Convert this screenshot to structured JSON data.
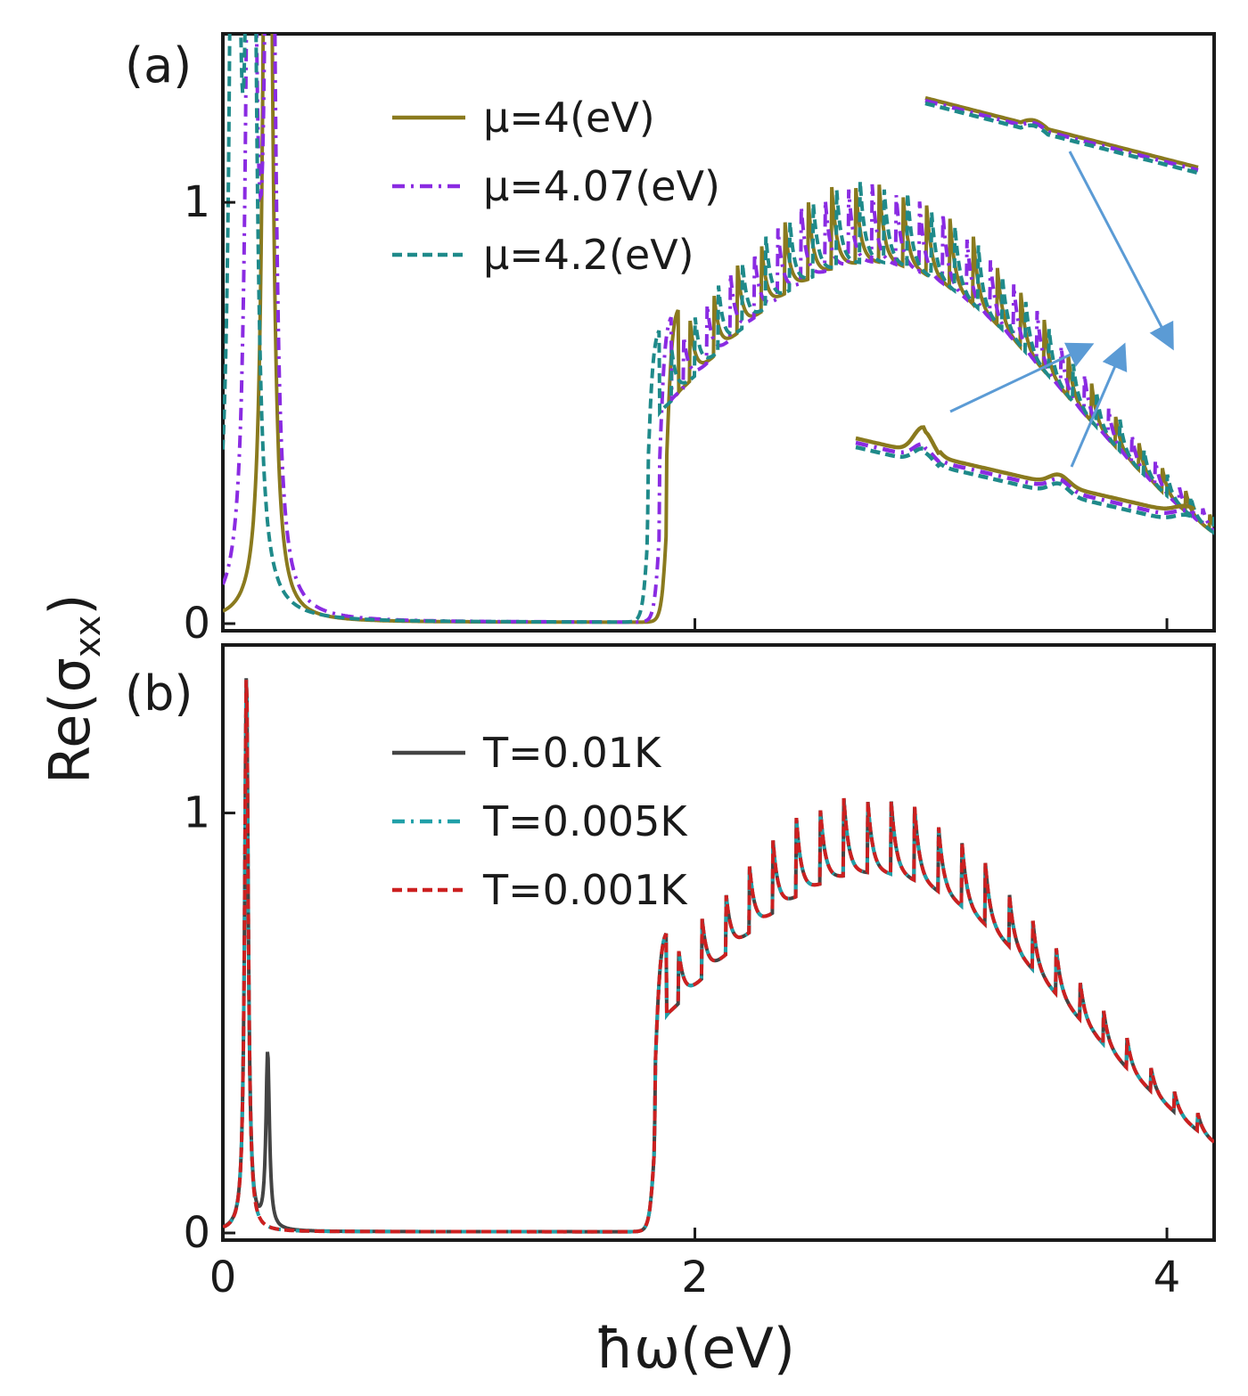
{
  "chart_data": [
    {
      "panel_label": "(a)",
      "type": "line",
      "xlim": [
        0,
        4.2
      ],
      "ylim": [
        0,
        1.4
      ],
      "xticks": [
        {
          "value": 0,
          "label": "0"
        },
        {
          "value": 2,
          "label": "2"
        },
        {
          "value": 4,
          "label": "4"
        }
      ],
      "yticks": [
        {
          "value": 0,
          "label": "0"
        },
        {
          "value": 1,
          "label": "1"
        }
      ],
      "legend_position": "top-center",
      "series": [
        {
          "name": "μ=4(eV)",
          "color": "#8a7a1e",
          "style": "solid",
          "params": {
            "interband_onset": 1.88,
            "intraband_peaks": [
              0.19
            ],
            "shift": 0.0
          }
        },
        {
          "name": "μ=4.07(eV)",
          "color": "#8a2be2",
          "style": "dashdot",
          "params": {
            "interband_onset": 1.85,
            "intraband_peaks": [
              0.12,
              0.2
            ],
            "shift": 0.0
          }
        },
        {
          "name": "μ=4.2(eV)",
          "color": "#1f8a8a",
          "style": "dashed",
          "params": {
            "interband_onset": 1.8,
            "intraband_peaks": [
              0.05,
              0.12
            ],
            "shift": 0.0
          }
        }
      ],
      "annotations": "zoomed insets of the tail oscillations with arrows"
    },
    {
      "panel_label": "(b)",
      "type": "line",
      "xlim": [
        0,
        4.2
      ],
      "ylim": [
        0,
        1.4
      ],
      "xticks": [
        {
          "value": 0,
          "label": "0"
        },
        {
          "value": 2,
          "label": "2"
        },
        {
          "value": 4,
          "label": "4"
        }
      ],
      "yticks": [
        {
          "value": 0,
          "label": "0"
        },
        {
          "value": 1,
          "label": "1"
        }
      ],
      "legend_position": "top-center",
      "series": [
        {
          "name": "T=0.01K",
          "color": "#444444",
          "style": "solid",
          "params": {
            "interband_onset": 1.83,
            "intraband_peaks": [
              0.1,
              0.19
            ]
          }
        },
        {
          "name": "T=0.005K",
          "color": "#20a0a8",
          "style": "dashdot",
          "params": {
            "interband_onset": 1.83,
            "intraband_peaks": [
              0.1
            ]
          }
        },
        {
          "name": "T=0.001K",
          "color": "#cc2020",
          "style": "dashed",
          "params": {
            "interband_onset": 1.83,
            "intraband_peaks": [
              0.1
            ]
          }
        }
      ]
    }
  ],
  "axes": {
    "ylabel": "Re(σ",
    "ylabel_sub": "xx",
    "ylabel_close": ")",
    "xlabel": "ħω(eV)"
  },
  "colors": {
    "arrow": "#5b9bd5",
    "frame": "#1a1a1a"
  }
}
